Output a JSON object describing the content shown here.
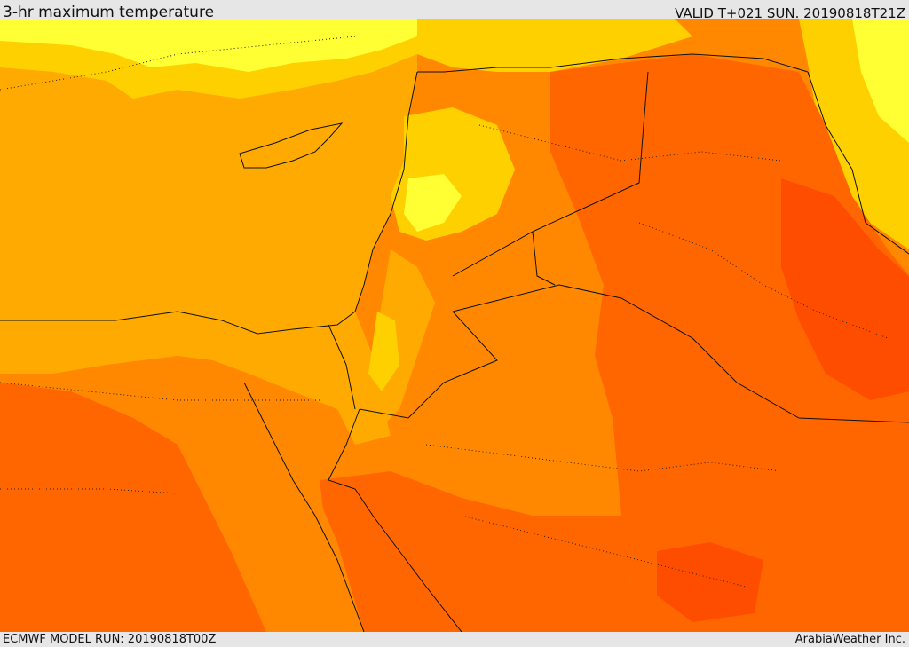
{
  "header": {
    "title": "3-hr maximum temperature",
    "valid": "VALID T+021 SUN. 20190818T21Z"
  },
  "footer": {
    "model_run": "ECMWF MODEL RUN: 20190818T00Z",
    "credit": "ArabiaWeather Inc."
  },
  "map": {
    "field": "3-hr maximum temperature",
    "region": "Eastern Mediterranean and Levant",
    "palette": {
      "lightest": "#ffff33",
      "light": "#ffd000",
      "mid_light": "#ffaa00",
      "mid": "#ff8800",
      "mid_dark": "#ff6600",
      "dark": "#ff4d00",
      "darkest": "#ff2a00"
    },
    "border_color": "#111111"
  }
}
